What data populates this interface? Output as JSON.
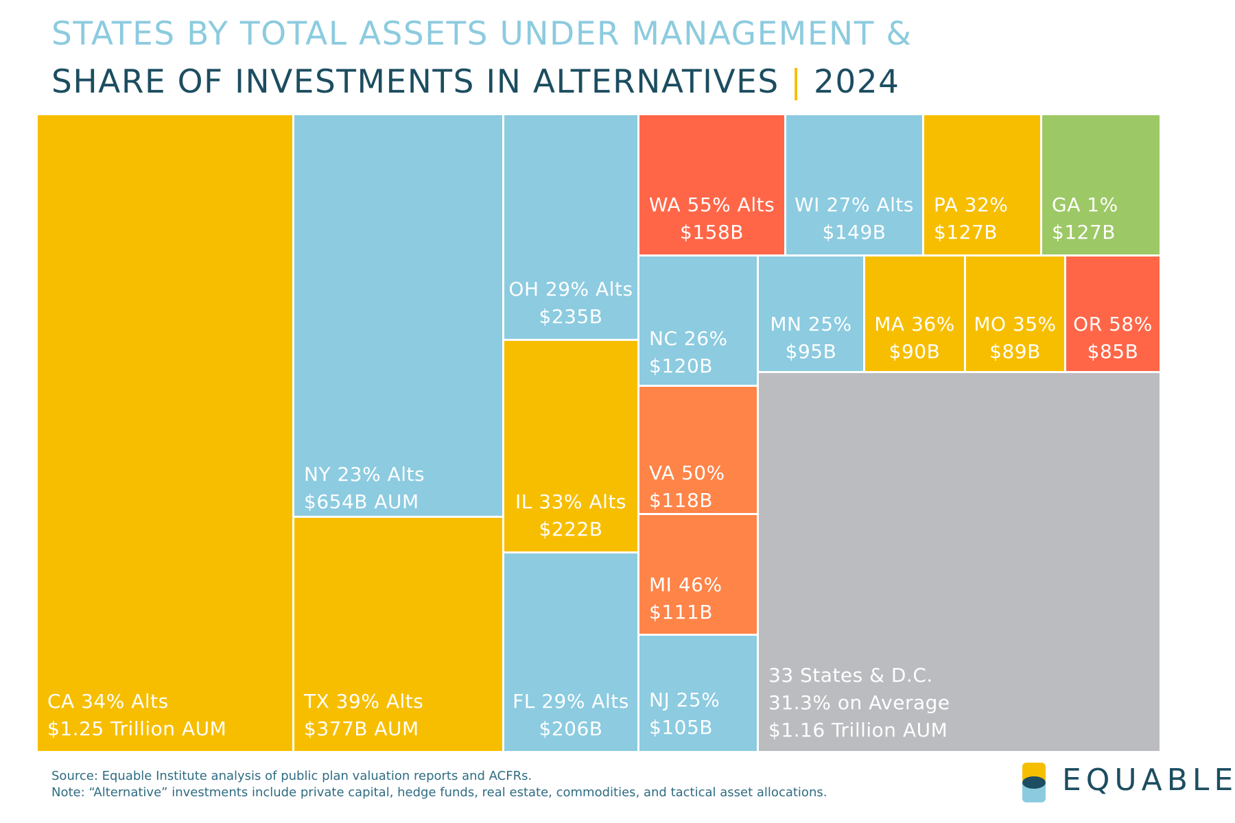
{
  "header": {
    "title_line1": "STATES BY TOTAL ASSETS UNDER MANAGEMENT &",
    "title_line2": "SHARE OF INVESTMENTS IN ALTERNATIVES",
    "separator": "|",
    "year": "2024"
  },
  "colors": {
    "yellow": "#f7be00",
    "blue": "#8ccbe0",
    "red": "#ff6648",
    "orange": "#ff8448",
    "green": "#9cc866",
    "gray": "#bbbcc0",
    "title_light": "#8ccbdf",
    "title_dark": "#1c4d60",
    "accent": "#f5bf00"
  },
  "chart_data": {
    "type": "treemap",
    "title": "STATES BY TOTAL ASSETS UNDER MANAGEMENT & SHARE OF INVESTMENTS IN ALTERNATIVES | 2024",
    "value_unit": "AUM ($B)",
    "items": [
      {
        "state": "CA",
        "alts_pct": 34,
        "aum_b": 1250,
        "label_line1": "CA 34% Alts",
        "label_line2": "$1.25 Trillion AUM",
        "color": "yellow"
      },
      {
        "state": "NY",
        "alts_pct": 23,
        "aum_b": 654,
        "label_line1": "NY 23% Alts",
        "label_line2": "$654B AUM",
        "color": "blue"
      },
      {
        "state": "TX",
        "alts_pct": 39,
        "aum_b": 377,
        "label_line1": "TX 39% Alts",
        "label_line2": "$377B AUM",
        "color": "yellow"
      },
      {
        "state": "OH",
        "alts_pct": 29,
        "aum_b": 235,
        "label_line1": "OH 29% Alts",
        "label_line2": "$235B",
        "color": "blue"
      },
      {
        "state": "IL",
        "alts_pct": 33,
        "aum_b": 222,
        "label_line1": "IL 33% Alts",
        "label_line2": "$222B",
        "color": "yellow"
      },
      {
        "state": "FL",
        "alts_pct": 29,
        "aum_b": 206,
        "label_line1": "FL 29% Alts",
        "label_line2": "$206B",
        "color": "blue"
      },
      {
        "state": "WA",
        "alts_pct": 55,
        "aum_b": 158,
        "label_line1": "WA 55% Alts",
        "label_line2": "$158B",
        "color": "red"
      },
      {
        "state": "WI",
        "alts_pct": 27,
        "aum_b": 149,
        "label_line1": "WI 27% Alts",
        "label_line2": "$149B",
        "color": "blue"
      },
      {
        "state": "PA",
        "alts_pct": 32,
        "aum_b": 127,
        "label_line1": "PA 32%",
        "label_line2": "$127B",
        "color": "yellow"
      },
      {
        "state": "GA",
        "alts_pct": 1,
        "aum_b": 127,
        "label_line1": "GA 1%",
        "label_line2": "$127B",
        "color": "green"
      },
      {
        "state": "NC",
        "alts_pct": 26,
        "aum_b": 120,
        "label_line1": "NC 26%",
        "label_line2": "$120B",
        "color": "blue"
      },
      {
        "state": "VA",
        "alts_pct": 50,
        "aum_b": 118,
        "label_line1": "VA 50%",
        "label_line2": "$118B",
        "color": "orange"
      },
      {
        "state": "MI",
        "alts_pct": 46,
        "aum_b": 111,
        "label_line1": "MI 46%",
        "label_line2": "$111B",
        "color": "orange"
      },
      {
        "state": "NJ",
        "alts_pct": 25,
        "aum_b": 105,
        "label_line1": "NJ 25%",
        "label_line2": "$105B",
        "color": "blue"
      },
      {
        "state": "MN",
        "alts_pct": 25,
        "aum_b": 95,
        "label_line1": "MN 25%",
        "label_line2": "$95B",
        "color": "blue"
      },
      {
        "state": "MA",
        "alts_pct": 36,
        "aum_b": 90,
        "label_line1": "MA 36%",
        "label_line2": "$90B",
        "color": "yellow"
      },
      {
        "state": "MO",
        "alts_pct": 35,
        "aum_b": 89,
        "label_line1": "MO 35%",
        "label_line2": "$89B",
        "color": "yellow"
      },
      {
        "state": "OR",
        "alts_pct": 58,
        "aum_b": 85,
        "label_line1": "OR 58%",
        "label_line2": "$85B",
        "color": "red"
      },
      {
        "state": "33 States & D.C.",
        "alts_pct": 31.3,
        "aum_b": 1160,
        "label_line1": "33 States & D.C.",
        "label_line2": "31.3% on Average",
        "label_line3": "$1.16 Trillion AUM",
        "color": "gray"
      }
    ]
  },
  "footer": {
    "source": "Source: Equable Institute analysis of public plan valuation reports and ACFRs.",
    "note": "Note: “Alternative” investments include private capital, hedge funds, real estate, commodities, and tactical asset allocations."
  },
  "logo": {
    "text": "EQUABLE"
  }
}
